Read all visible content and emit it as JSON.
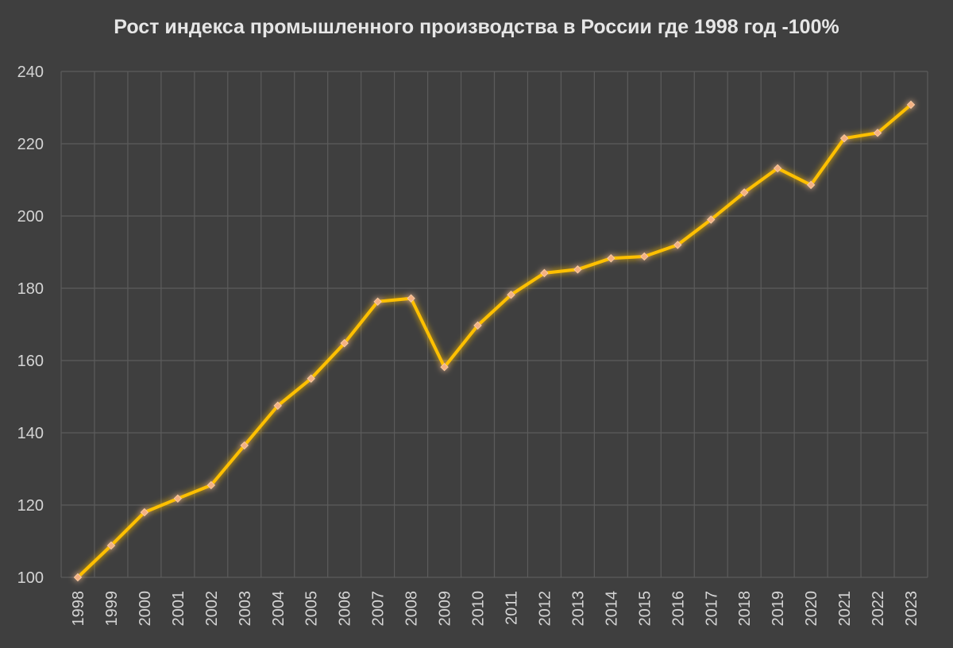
{
  "chart_data": {
    "type": "line",
    "title": "Рост индекса промышленного производства в России где 1998 год -100%",
    "xlabel": "",
    "ylabel": "",
    "x": [
      "1998",
      "1999",
      "2000",
      "2001",
      "2002",
      "2003",
      "2004",
      "2005",
      "2006",
      "2007",
      "2008",
      "2009",
      "2010",
      "2011",
      "2012",
      "2013",
      "2014",
      "2015",
      "2016",
      "2017",
      "2018",
      "2019",
      "2020",
      "2021",
      "2022",
      "2023"
    ],
    "series": [
      {
        "values": [
          100,
          108.8,
          118,
          121.8,
          125.5,
          136.5,
          147.5,
          155,
          164.8,
          176.3,
          177.2,
          158.2,
          169.7,
          178.2,
          184.2,
          185.2,
          188.3,
          188.8,
          192,
          199,
          206.5,
          213.2,
          208.6,
          221.5,
          223,
          230.8
        ],
        "color": "#ffc000",
        "marker_color": "#f4b183"
      }
    ],
    "ylim": [
      100,
      240
    ],
    "yticks": [
      100,
      120,
      140,
      160,
      180,
      200,
      220,
      240
    ],
    "grid": true,
    "legend": "none",
    "colors": {
      "background": "#3f3f3f",
      "grid": "#5c5c5c",
      "text": "#d4d4d4",
      "title": "#e6e6e6"
    }
  }
}
